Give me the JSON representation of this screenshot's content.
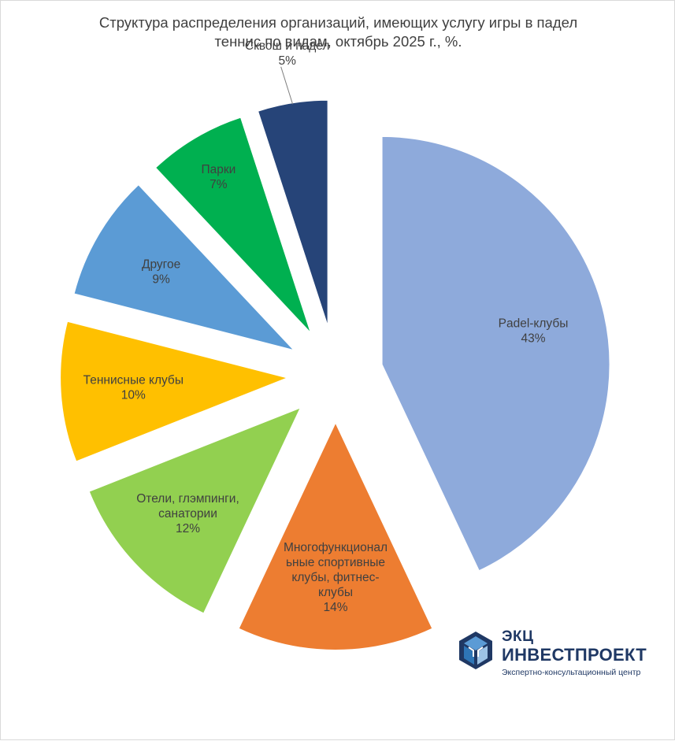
{
  "title_lines": [
    "Структура распределения организаций, имеющих  услугу игры в падел",
    "теннис по видам, октябрь 2025 г., %."
  ],
  "chart_data": {
    "type": "pie",
    "title": "Структура распределения организаций, имеющих  услугу игры в падел теннис по видам, октябрь 2025 г., %.",
    "unit": "%",
    "slices": [
      {
        "label": "Padel-клубы",
        "label_lines": [
          "Padel-клубы"
        ],
        "value": 43,
        "value_label": "43%",
        "color": "#8eaadb"
      },
      {
        "label": "Многофункциональные спортивные клубы, фитнес-клубы",
        "label_lines": [
          "Многофункционал",
          "ьные спортивные",
          "клубы, фитнес-",
          "клубы"
        ],
        "value": 14,
        "value_label": "14%",
        "color": "#ed7d31"
      },
      {
        "label": "Отели, глэмпинги, санатории",
        "label_lines": [
          "Отели, глэмпинги,",
          "санатории"
        ],
        "value": 12,
        "value_label": "12%",
        "color": "#92d050"
      },
      {
        "label": "Теннисные клубы",
        "label_lines": [
          "Теннисные клубы"
        ],
        "value": 10,
        "value_label": "10%",
        "color": "#ffc000"
      },
      {
        "label": "Другое",
        "label_lines": [
          "Другое"
        ],
        "value": 9,
        "value_label": "9%",
        "color": "#5b9bd5"
      },
      {
        "label": "Парки",
        "label_lines": [
          "Парки"
        ],
        "value": 7,
        "value_label": "7%",
        "color": "#00b050"
      },
      {
        "label": "Сквош и падел",
        "label_lines": [
          "Сквош и падел"
        ],
        "value": 5,
        "value_label": "5%",
        "color": "#264478"
      }
    ],
    "exploded": true,
    "legend": "none"
  },
  "logo": {
    "name_line1": "ЭКЦ",
    "name_line2": "ИНВЕСТПРОЕКТ",
    "tagline": "Экспертно-консультационный центр"
  }
}
